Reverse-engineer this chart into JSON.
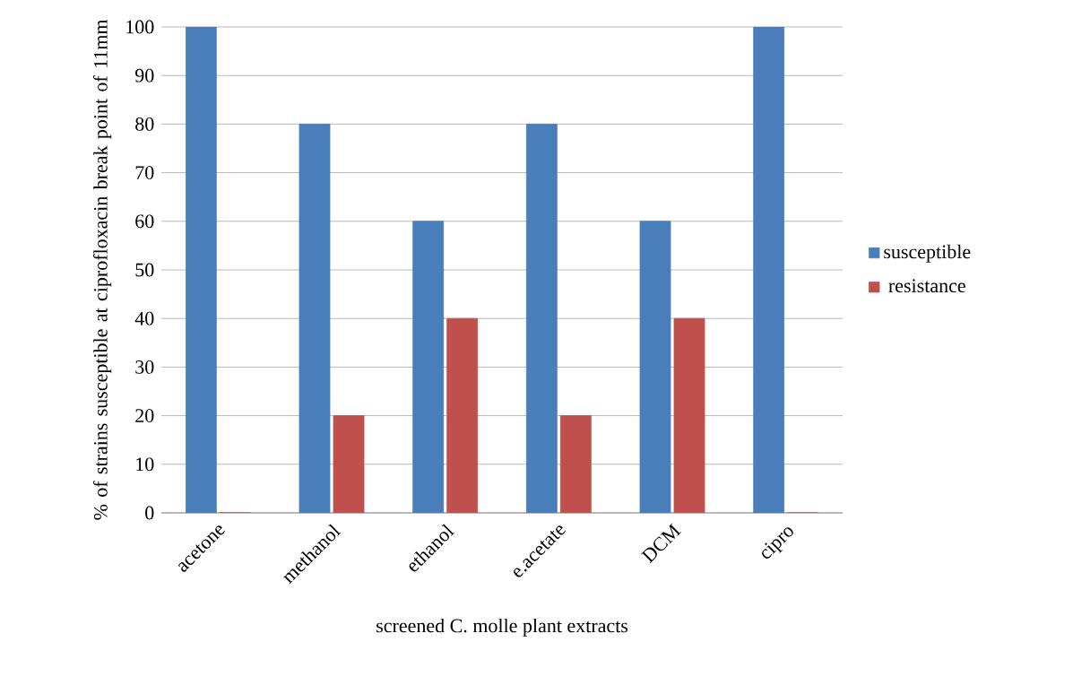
{
  "chart_data": {
    "type": "bar",
    "xlabel": "screened C. molle plant extracts",
    "ylabel": "% of strains susceptible at ciprofloxacin break point of 11mm",
    "categories": [
      "acetone",
      "methanol",
      "ethanol",
      "e.acetate",
      "DCM",
      "cipro"
    ],
    "series": [
      {
        "name": "susceptible",
        "color": "#4a7ebb",
        "values": [
          100,
          80,
          60,
          80,
          60,
          100
        ]
      },
      {
        "name": "resistance",
        "color": "#c0504d",
        "values": [
          0,
          20,
          40,
          20,
          40,
          0
        ]
      }
    ],
    "ylim": [
      0,
      100
    ],
    "yticks": [
      0,
      10,
      20,
      30,
      40,
      50,
      60,
      70,
      80,
      90,
      100
    ],
    "grid": "y",
    "legend": "right"
  }
}
